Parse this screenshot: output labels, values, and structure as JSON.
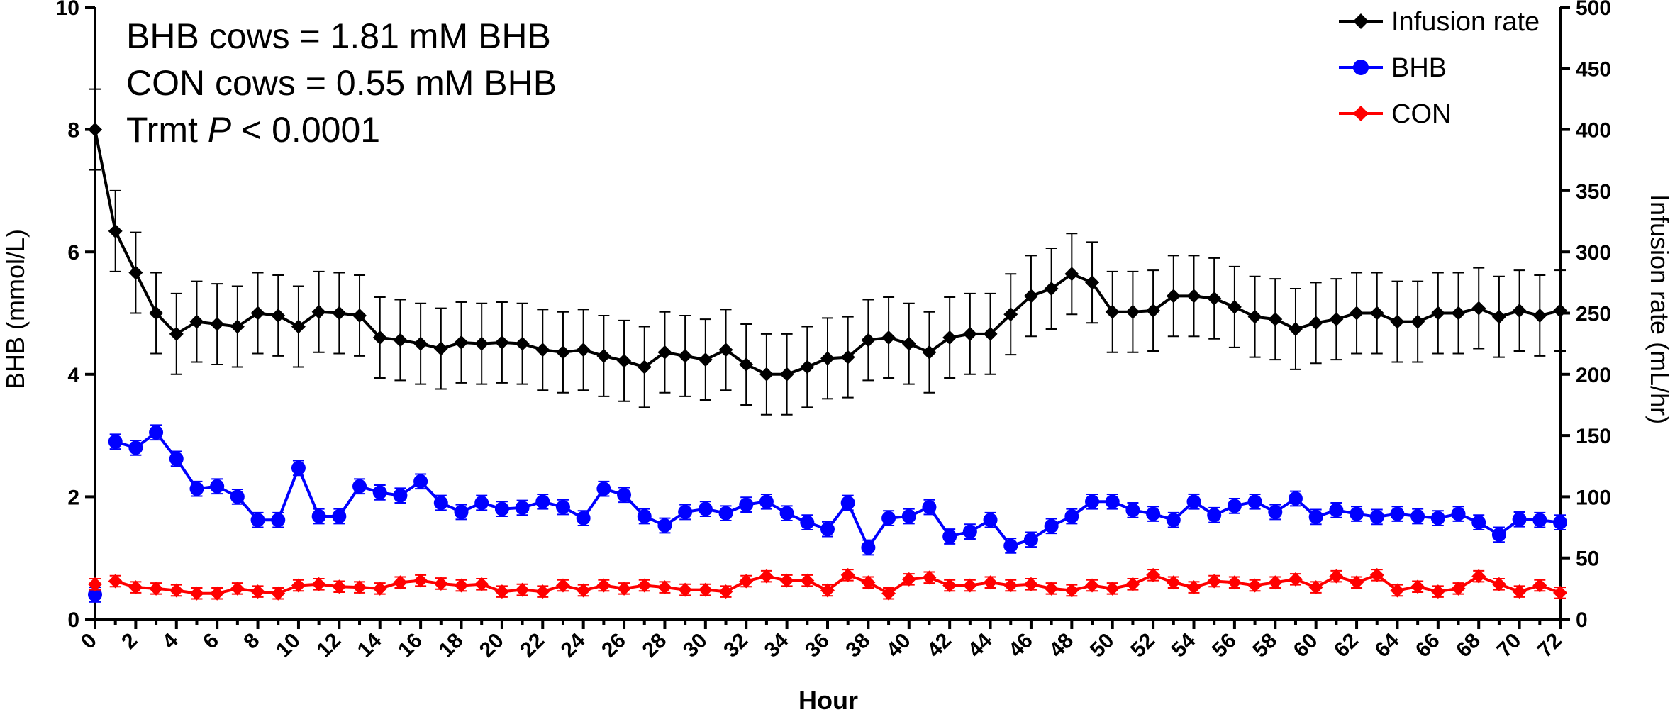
{
  "chart_data": {
    "type": "line",
    "xlabel": "Hour",
    "ylabel": "BHB (mmol/L)",
    "y2label": "Infusion rate (mL/hr)",
    "x_ticks": [
      0,
      2,
      4,
      6,
      8,
      10,
      12,
      14,
      16,
      18,
      20,
      22,
      24,
      26,
      28,
      30,
      32,
      34,
      36,
      38,
      40,
      42,
      44,
      46,
      48,
      50,
      52,
      54,
      56,
      58,
      60,
      62,
      64,
      66,
      68,
      70,
      72
    ],
    "y_ticks": [
      0,
      2,
      4,
      6,
      8,
      10
    ],
    "y2_ticks": [
      0,
      50,
      100,
      150,
      200,
      250,
      300,
      350,
      400,
      450,
      500
    ],
    "xlim": [
      0,
      72
    ],
    "ylim": [
      0,
      10
    ],
    "y2lim": [
      0,
      500
    ],
    "annotations": {
      "line1": "BHB cows = 1.81 mM BHB",
      "line2": "CON cows = 0.55 mM BHB",
      "line3_pre": "Trmt ",
      "line3_italic": "P",
      "line3_post": " < 0.0001"
    },
    "legend_position": "top-right",
    "series": [
      {
        "name": "Infusion rate",
        "axis": "right",
        "color": "#000000",
        "marker": "diamond",
        "x": [
          0,
          1,
          2,
          3,
          4,
          5,
          6,
          7,
          8,
          9,
          10,
          11,
          12,
          13,
          14,
          15,
          16,
          17,
          18,
          19,
          20,
          21,
          22,
          23,
          24,
          25,
          26,
          27,
          28,
          29,
          30,
          31,
          32,
          33,
          34,
          35,
          36,
          37,
          38,
          39,
          40,
          41,
          42,
          43,
          44,
          45,
          46,
          47,
          48,
          49,
          50,
          51,
          52,
          53,
          54,
          55,
          56,
          57,
          58,
          59,
          60,
          61,
          62,
          63,
          64,
          65,
          66,
          67,
          68,
          69,
          70,
          71,
          72
        ],
        "values": [
          400,
          317,
          283,
          250,
          233,
          243,
          241,
          239,
          250,
          248,
          239,
          251,
          250,
          248,
          230,
          228,
          225,
          221,
          226,
          225,
          226,
          225,
          220,
          218,
          220,
          215,
          211,
          206,
          218,
          215,
          212,
          220,
          208,
          200,
          200,
          206,
          213,
          214,
          228,
          230,
          225,
          218,
          230,
          233,
          233,
          249,
          264,
          270,
          282,
          275,
          251,
          251,
          252,
          264,
          264,
          262,
          255,
          247,
          245,
          237,
          242,
          245,
          250,
          250,
          243,
          243,
          250,
          250,
          254,
          247,
          252,
          248,
          252
        ],
        "error": [
          33,
          33,
          33,
          33,
          33,
          33,
          33,
          33,
          33,
          33,
          33,
          33,
          33,
          33,
          33,
          33,
          33,
          33,
          33,
          33,
          33,
          33,
          33,
          33,
          33,
          33,
          33,
          33,
          33,
          33,
          33,
          33,
          33,
          33,
          33,
          33,
          33,
          33,
          33,
          33,
          33,
          33,
          33,
          33,
          33,
          33,
          33,
          33,
          33,
          33,
          33,
          33,
          33,
          33,
          33,
          33,
          33,
          33,
          33,
          33,
          33,
          33,
          33,
          33,
          33,
          33,
          33,
          33,
          33,
          33,
          33,
          33,
          33
        ]
      },
      {
        "name": "BHB",
        "axis": "left",
        "color": "#0000ff",
        "marker": "circle",
        "x": [
          0,
          1,
          2,
          3,
          4,
          5,
          6,
          7,
          8,
          9,
          10,
          11,
          12,
          13,
          14,
          15,
          16,
          17,
          18,
          19,
          20,
          21,
          22,
          23,
          24,
          25,
          26,
          27,
          28,
          29,
          30,
          31,
          32,
          33,
          34,
          35,
          36,
          37,
          38,
          39,
          40,
          41,
          42,
          43,
          44,
          45,
          46,
          47,
          48,
          49,
          50,
          51,
          52,
          53,
          54,
          55,
          56,
          57,
          58,
          59,
          60,
          61,
          62,
          63,
          64,
          65,
          66,
          67,
          68,
          69,
          70,
          71,
          72
        ],
        "values": [
          0.4,
          2.9,
          2.8,
          3.05,
          2.62,
          2.13,
          2.17,
          2.0,
          1.62,
          1.62,
          2.47,
          1.68,
          1.68,
          2.17,
          2.07,
          2.02,
          2.25,
          1.9,
          1.75,
          1.9,
          1.8,
          1.82,
          1.92,
          1.83,
          1.65,
          2.13,
          2.03,
          1.68,
          1.53,
          1.75,
          1.8,
          1.73,
          1.87,
          1.92,
          1.73,
          1.58,
          1.47,
          1.9,
          1.17,
          1.65,
          1.68,
          1.83,
          1.35,
          1.43,
          1.62,
          1.2,
          1.3,
          1.52,
          1.68,
          1.92,
          1.92,
          1.78,
          1.72,
          1.62,
          1.92,
          1.7,
          1.85,
          1.92,
          1.75,
          1.97,
          1.67,
          1.78,
          1.72,
          1.67,
          1.72,
          1.68,
          1.65,
          1.72,
          1.58,
          1.38,
          1.63,
          1.62,
          1.58
        ],
        "error": [
          0.12,
          0.12,
          0.12,
          0.12,
          0.12,
          0.12,
          0.12,
          0.12,
          0.12,
          0.12,
          0.12,
          0.12,
          0.12,
          0.12,
          0.12,
          0.12,
          0.12,
          0.12,
          0.12,
          0.12,
          0.12,
          0.12,
          0.12,
          0.12,
          0.12,
          0.12,
          0.12,
          0.12,
          0.12,
          0.12,
          0.12,
          0.12,
          0.12,
          0.12,
          0.12,
          0.12,
          0.12,
          0.12,
          0.12,
          0.12,
          0.12,
          0.12,
          0.12,
          0.12,
          0.12,
          0.12,
          0.12,
          0.12,
          0.12,
          0.12,
          0.12,
          0.12,
          0.12,
          0.12,
          0.12,
          0.12,
          0.12,
          0.12,
          0.12,
          0.12,
          0.12,
          0.12,
          0.12,
          0.12,
          0.12,
          0.12,
          0.12,
          0.12,
          0.12,
          0.12,
          0.12,
          0.12,
          0.12
        ]
      },
      {
        "name": "CON",
        "axis": "left",
        "color": "#ff0000",
        "marker": "diamond",
        "x": [
          0,
          1,
          2,
          3,
          4,
          5,
          6,
          7,
          8,
          9,
          10,
          11,
          12,
          13,
          14,
          15,
          16,
          17,
          18,
          19,
          20,
          21,
          22,
          23,
          24,
          25,
          26,
          27,
          28,
          29,
          30,
          31,
          32,
          33,
          34,
          35,
          36,
          37,
          38,
          39,
          40,
          41,
          42,
          43,
          44,
          45,
          46,
          47,
          48,
          49,
          50,
          51,
          52,
          53,
          54,
          55,
          56,
          57,
          58,
          59,
          60,
          61,
          62,
          63,
          64,
          65,
          66,
          67,
          68,
          69,
          70,
          71,
          72
        ],
        "values": [
          0.57,
          0.62,
          0.52,
          0.5,
          0.47,
          0.42,
          0.42,
          0.5,
          0.45,
          0.42,
          0.55,
          0.57,
          0.53,
          0.52,
          0.5,
          0.6,
          0.63,
          0.58,
          0.55,
          0.57,
          0.45,
          0.48,
          0.45,
          0.55,
          0.47,
          0.55,
          0.5,
          0.55,
          0.52,
          0.48,
          0.48,
          0.45,
          0.62,
          0.7,
          0.63,
          0.63,
          0.47,
          0.72,
          0.6,
          0.42,
          0.65,
          0.68,
          0.55,
          0.55,
          0.6,
          0.55,
          0.57,
          0.5,
          0.47,
          0.55,
          0.5,
          0.57,
          0.72,
          0.6,
          0.52,
          0.62,
          0.6,
          0.55,
          0.6,
          0.65,
          0.52,
          0.7,
          0.6,
          0.72,
          0.47,
          0.53,
          0.45,
          0.5,
          0.7,
          0.57,
          0.45,
          0.55,
          0.43
        ],
        "error": [
          0.09,
          0.09,
          0.09,
          0.09,
          0.09,
          0.09,
          0.09,
          0.09,
          0.09,
          0.09,
          0.09,
          0.09,
          0.09,
          0.09,
          0.09,
          0.09,
          0.09,
          0.09,
          0.09,
          0.09,
          0.09,
          0.09,
          0.09,
          0.09,
          0.09,
          0.09,
          0.09,
          0.09,
          0.09,
          0.09,
          0.09,
          0.09,
          0.09,
          0.09,
          0.09,
          0.09,
          0.09,
          0.09,
          0.09,
          0.09,
          0.09,
          0.09,
          0.09,
          0.09,
          0.09,
          0.09,
          0.09,
          0.09,
          0.09,
          0.09,
          0.09,
          0.09,
          0.09,
          0.09,
          0.09,
          0.09,
          0.09,
          0.09,
          0.09,
          0.09,
          0.09,
          0.09,
          0.09,
          0.09,
          0.09,
          0.09,
          0.09,
          0.09,
          0.09,
          0.09,
          0.09,
          0.09,
          0.09
        ]
      }
    ]
  }
}
